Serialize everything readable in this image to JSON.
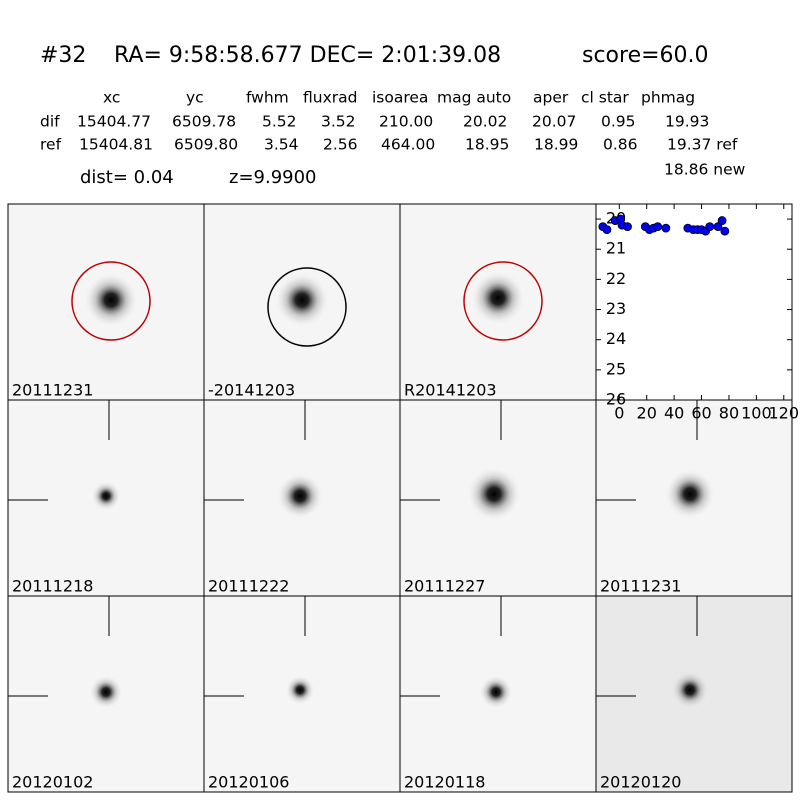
{
  "header": {
    "id": "#32",
    "coords": "RA= 9:58:58.677 DEC= 2:01:39.08",
    "score": "score=60.0"
  },
  "table": {
    "columns": [
      "xc",
      "yc",
      "fwhm",
      "fluxrad",
      "isoarea",
      "mag auto",
      "aper",
      "cl star",
      "phmag"
    ],
    "rows": [
      {
        "label": "dif",
        "cells": [
          "15404.77",
          "6509.78",
          "5.52",
          "3.52",
          "210.00",
          "20.02",
          "20.07",
          "0.95",
          "19.93"
        ]
      },
      {
        "label": "ref",
        "cells": [
          "15404.81",
          "6509.80",
          "3.54",
          "2.56",
          "464.00",
          "18.95",
          "18.99",
          "0.86",
          "19.37 ref"
        ]
      }
    ],
    "extra": "18.86 new"
  },
  "dist": "dist=  0.04",
  "z": "z=9.9900",
  "panels": [
    {
      "label": "20111231",
      "circle": "#c00000"
    },
    {
      "label": "-20141203",
      "circle": "#000000"
    },
    {
      "label": "R20141203",
      "circle": "#c00000"
    },
    {
      "label": "20111218"
    },
    {
      "label": "20111222"
    },
    {
      "label": "20111227"
    },
    {
      "label": "20111231",
      "label_color": "#ff0000"
    },
    {
      "label": "20120102"
    },
    {
      "label": "20120106"
    },
    {
      "label": "20120118"
    },
    {
      "label": "20120120"
    }
  ],
  "chart_data": {
    "type": "scatter",
    "color": "#0000ff",
    "x": [
      -12,
      -9,
      -3,
      1,
      2,
      6,
      19,
      22,
      25,
      28,
      34,
      50,
      54,
      57,
      60,
      63,
      66,
      72,
      75,
      77
    ],
    "values": [
      20.25,
      20.35,
      20.05,
      20.0,
      20.2,
      20.25,
      20.25,
      20.35,
      20.3,
      20.25,
      20.3,
      20.3,
      20.35,
      20.35,
      20.35,
      20.4,
      20.25,
      20.25,
      20.05,
      20.4
    ],
    "xlim": [
      -17,
      126
    ],
    "ylim": [
      26,
      19.5
    ],
    "xticks": [
      0,
      20,
      40,
      60,
      80,
      100,
      120
    ],
    "yticks": [
      20,
      21,
      22,
      23,
      24,
      25,
      26
    ]
  }
}
